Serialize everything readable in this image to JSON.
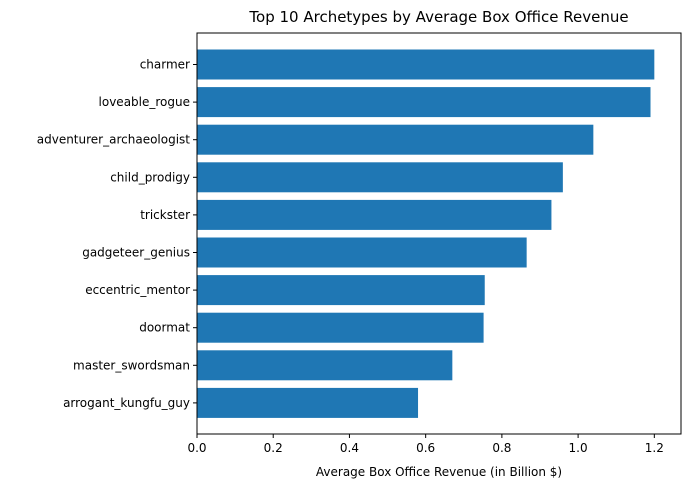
{
  "chart_data": {
    "type": "bar",
    "orientation": "horizontal",
    "title": "Top 10 Archetypes by Average Box Office Revenue",
    "xlabel": "Average Box Office Revenue (in Billion $)",
    "ylabel": "",
    "xlim": [
      0,
      1.27
    ],
    "xticks": [
      "0.0",
      "0.2",
      "0.4",
      "0.6",
      "0.8",
      "1.0",
      "1.2"
    ],
    "grid": false,
    "bar_color": "#1f77b4",
    "categories": [
      "charmer",
      "loveable_rogue",
      "adventurer_archaeologist",
      "child_prodigy",
      "trickster",
      "gadgeteer_genius",
      "eccentric_mentor",
      "doormat",
      "master_swordsman",
      "arrogant_kungfu_guy"
    ],
    "values": [
      1.2,
      1.19,
      1.04,
      0.96,
      0.93,
      0.865,
      0.755,
      0.752,
      0.67,
      0.58
    ]
  }
}
